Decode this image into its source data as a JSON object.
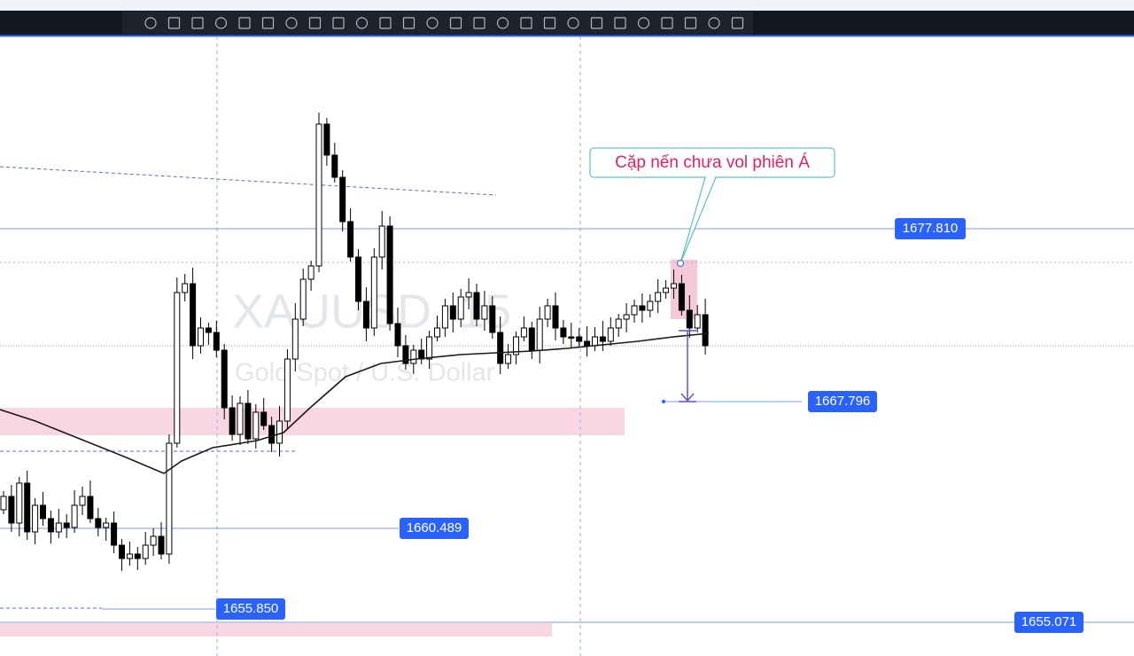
{
  "watermark": {
    "symbol": "XAUUSD, 15",
    "description": "Gold Spot / U.S. Dollar"
  },
  "annotation": "Cặp nến chưa vol phiên Á",
  "price_labels": [
    "1677.810",
    "1667.796",
    "1660.489",
    "1655.850",
    "1655.071"
  ]
}
